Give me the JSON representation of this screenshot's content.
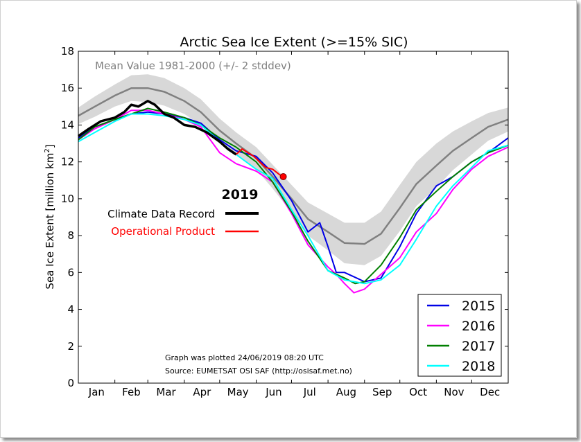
{
  "chart_data": {
    "type": "line",
    "title": "Arctic Sea Ice Extent (>=15% SIC)",
    "ylabel": "Sea Ice Extent [million km",
    "ylabel_sup": "2",
    "ylabel_end": "]",
    "ylim": [
      0,
      18
    ],
    "yticks": [
      0,
      2,
      4,
      6,
      8,
      10,
      12,
      14,
      16,
      18
    ],
    "xlim": [
      1,
      366
    ],
    "months": [
      "Jan",
      "Feb",
      "Mar",
      "Apr",
      "May",
      "Jun",
      "Jul",
      "Aug",
      "Sep",
      "Oct",
      "Nov",
      "Dec"
    ],
    "grid": false,
    "mean_label": "Mean Value 1981-2000 (+/- 2 stddev)",
    "mean": {
      "color": "#808080",
      "band_color": "#d8d8d8",
      "x": [
        1,
        15,
        32,
        46,
        60,
        74,
        91,
        105,
        121,
        135,
        152,
        166,
        182,
        196,
        213,
        227,
        244,
        258,
        274,
        288,
        305,
        319,
        335,
        349,
        366
      ],
      "y": [
        14.5,
        15.0,
        15.6,
        16.0,
        16.0,
        15.8,
        15.3,
        14.7,
        13.7,
        13.0,
        12.2,
        11.2,
        10.0,
        8.9,
        8.2,
        7.6,
        7.55,
        8.1,
        9.5,
        10.8,
        11.8,
        12.6,
        13.3,
        13.9,
        14.3
      ],
      "band": [
        0.45,
        0.55,
        0.6,
        0.7,
        0.75,
        0.75,
        0.7,
        0.7,
        0.65,
        0.6,
        0.6,
        0.65,
        0.75,
        0.9,
        1.0,
        1.1,
        1.15,
        1.2,
        1.25,
        1.2,
        1.2,
        1.05,
        0.9,
        0.75,
        0.65
      ]
    },
    "series": [
      {
        "name": "2015",
        "color": "#0000e6",
        "x": [
          1,
          15,
          32,
          46,
          60,
          74,
          91,
          105,
          121,
          135,
          152,
          166,
          182,
          196,
          206,
          213,
          220,
          227,
          244,
          258,
          274,
          288,
          305,
          319,
          335,
          349,
          366
        ],
        "y": [
          13.3,
          13.9,
          14.3,
          14.6,
          14.7,
          14.6,
          14.4,
          14.1,
          13.2,
          12.6,
          12.3,
          11.4,
          9.9,
          8.2,
          8.7,
          7.4,
          6.0,
          6.0,
          5.5,
          5.7,
          7.4,
          9.2,
          10.7,
          11.2,
          12.0,
          12.5,
          13.3
        ]
      },
      {
        "name": "2016",
        "color": "#ff00ff",
        "x": [
          1,
          15,
          32,
          46,
          60,
          74,
          91,
          105,
          121,
          135,
          152,
          166,
          182,
          196,
          213,
          220,
          227,
          235,
          244,
          258,
          274,
          288,
          305,
          319,
          335,
          349,
          366
        ],
        "y": [
          13.2,
          13.8,
          14.3,
          14.8,
          14.8,
          14.6,
          14.3,
          13.9,
          12.5,
          11.9,
          11.5,
          10.9,
          9.2,
          7.5,
          6.3,
          5.9,
          5.4,
          4.9,
          5.1,
          5.9,
          6.8,
          8.2,
          9.2,
          10.5,
          11.6,
          12.3,
          12.8
        ]
      },
      {
        "name": "2017",
        "color": "#007f00",
        "x": [
          1,
          15,
          32,
          46,
          60,
          74,
          91,
          105,
          121,
          135,
          152,
          166,
          182,
          196,
          213,
          227,
          236,
          244,
          258,
          274,
          288,
          305,
          319,
          335,
          349,
          366
        ],
        "y": [
          13.2,
          13.9,
          14.3,
          14.6,
          14.9,
          14.7,
          14.4,
          14.0,
          13.3,
          12.8,
          12.0,
          10.9,
          9.3,
          7.7,
          6.1,
          5.7,
          5.4,
          5.5,
          6.4,
          7.9,
          9.4,
          10.4,
          11.2,
          12.0,
          12.5,
          12.9
        ]
      },
      {
        "name": "2018",
        "color": "#00ffff",
        "x": [
          1,
          15,
          32,
          46,
          60,
          74,
          91,
          105,
          121,
          135,
          152,
          166,
          182,
          196,
          213,
          227,
          244,
          258,
          274,
          288,
          305,
          319,
          335,
          349,
          366
        ],
        "y": [
          13.1,
          13.6,
          14.2,
          14.6,
          14.6,
          14.5,
          14.3,
          14.0,
          13.1,
          12.4,
          11.6,
          11.1,
          9.4,
          8.0,
          6.1,
          5.6,
          5.4,
          5.6,
          6.4,
          7.8,
          9.6,
          10.7,
          11.7,
          12.6,
          12.9
        ]
      }
    ],
    "current_year": "2019",
    "climate_data_record": {
      "label": "Climate Data Record",
      "color": "#000000",
      "x": [
        1,
        10,
        20,
        32,
        40,
        46,
        52,
        60,
        66,
        74,
        82,
        91,
        100,
        110,
        121,
        128,
        135
      ],
      "y": [
        13.4,
        13.8,
        14.2,
        14.4,
        14.7,
        15.1,
        15.0,
        15.3,
        15.1,
        14.6,
        14.4,
        14.0,
        13.9,
        13.6,
        13.1,
        12.7,
        12.4
      ]
    },
    "operational_product": {
      "label": "Operational Product",
      "color": "#ff0000",
      "x": [
        135,
        140,
        145,
        150,
        155,
        160,
        166,
        172,
        175
      ],
      "y": [
        12.4,
        12.7,
        12.5,
        12.3,
        12.0,
        11.7,
        11.6,
        11.3,
        11.2
      ]
    },
    "annotations": [
      "Graph was plotted 24/06/2019 08:20 UTC",
      "Source: EUMETSAT OSI SAF (http://osisaf.met.no)"
    ],
    "legend_placement": "bottom-right"
  }
}
